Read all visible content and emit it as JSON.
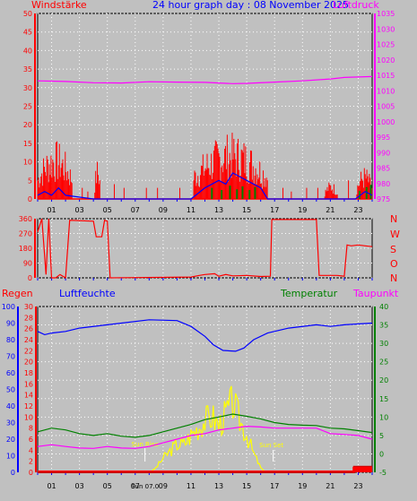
{
  "title": "24 hour graph day : 08 November 2025",
  "colors": {
    "background": "#c0c0c0",
    "plot_bg": "#c0c0c0",
    "red": "#ff0000",
    "magenta": "#ff00ff",
    "blue": "#0000ff",
    "green": "#008000",
    "dark_red": "#cc0000",
    "yellow": "#ffff00",
    "grid": "#ffffff"
  },
  "chart_data": [
    {
      "type": "line",
      "title": "24 hour graph day : 08 November 2025",
      "left_label": "Windstärke",
      "right_label": "Luftdruck",
      "x_ticks": [
        "01",
        "03",
        "05",
        "07",
        "09",
        "11",
        "13",
        "15",
        "17",
        "19",
        "21",
        "23"
      ],
      "y_left_ticks": [
        0,
        5,
        10,
        15,
        20,
        25,
        30,
        35,
        40,
        45,
        50
      ],
      "y_left_lim": [
        0,
        50
      ],
      "y_right_ticks": [
        975,
        980,
        985,
        990,
        995,
        1000,
        1005,
        1010,
        1015,
        1020,
        1025,
        1030,
        1035
      ],
      "y_right_lim": [
        975,
        1035
      ],
      "pressure": [
        [
          0,
          1013.2
        ],
        [
          2,
          1013.0
        ],
        [
          4,
          1012.6
        ],
        [
          6,
          1012.5
        ],
        [
          8,
          1012.9
        ],
        [
          10,
          1012.8
        ],
        [
          12,
          1012.7
        ],
        [
          14,
          1012.3
        ],
        [
          15,
          1012.4
        ],
        [
          17,
          1012.8
        ],
        [
          19,
          1013.2
        ],
        [
          21,
          1013.8
        ],
        [
          22,
          1014.3
        ],
        [
          24,
          1014.6
        ]
      ],
      "wind_gust_regions": [
        [
          0,
          2.5,
          16
        ],
        [
          4.1,
          4.5,
          11
        ],
        [
          11.2,
          16.5,
          18
        ],
        [
          20.6,
          21.5,
          5
        ],
        [
          22.9,
          24,
          9
        ]
      ],
      "wind_avg": [
        [
          0,
          1
        ],
        [
          0.5,
          2
        ],
        [
          1,
          1
        ],
        [
          1.5,
          3
        ],
        [
          2,
          1
        ],
        [
          4,
          0
        ],
        [
          11,
          0
        ],
        [
          12,
          3
        ],
        [
          13,
          5
        ],
        [
          13.5,
          4
        ],
        [
          14,
          7
        ],
        [
          15,
          5
        ],
        [
          16,
          3
        ],
        [
          16.5,
          0
        ],
        [
          22.8,
          0
        ],
        [
          23.5,
          2
        ],
        [
          24,
          1
        ]
      ]
    },
    {
      "type": "line",
      "right_letters": [
        "N",
        "W",
        "S",
        "O",
        "N"
      ],
      "y_ticks": [
        0,
        90,
        180,
        270,
        360
      ],
      "y_lim": [
        0,
        360
      ],
      "x_ticks": [
        "01",
        "03",
        "05",
        "07",
        "09",
        "11",
        "13",
        "15",
        "17",
        "19",
        "21",
        "23"
      ],
      "direction": [
        [
          0,
          280
        ],
        [
          0.3,
          360
        ],
        [
          0.6,
          20
        ],
        [
          0.8,
          360
        ],
        [
          1.0,
          0
        ],
        [
          1.3,
          0
        ],
        [
          1.6,
          20
        ],
        [
          2.0,
          0
        ],
        [
          2.3,
          350
        ],
        [
          4.0,
          345
        ],
        [
          4.2,
          250
        ],
        [
          4.6,
          250
        ],
        [
          4.8,
          350
        ],
        [
          5.0,
          345
        ],
        [
          5.2,
          0
        ],
        [
          11,
          5
        ],
        [
          11.6,
          15
        ],
        [
          12,
          20
        ],
        [
          12.7,
          25
        ],
        [
          13,
          10
        ],
        [
          13.5,
          20
        ],
        [
          14,
          12
        ],
        [
          15,
          15
        ],
        [
          16,
          8
        ],
        [
          16.7,
          10
        ],
        [
          16.8,
          355
        ],
        [
          20,
          355
        ],
        [
          20.2,
          15
        ],
        [
          21.5,
          15
        ],
        [
          22,
          10
        ],
        [
          22.2,
          200
        ],
        [
          22.5,
          195
        ],
        [
          23,
          200
        ],
        [
          23.5,
          195
        ],
        [
          24,
          190
        ]
      ]
    },
    {
      "type": "line",
      "labels": [
        "Regen",
        "Luftfeuchte",
        "Temperatur",
        "Taupunkt"
      ],
      "x_ticks": [
        "01",
        "03",
        "05",
        "07",
        "09",
        "11",
        "13",
        "15",
        "17",
        "19",
        "21",
        "23"
      ],
      "regen_ticks": [
        0,
        2,
        4,
        6,
        8,
        10,
        12,
        14,
        16,
        18,
        20,
        22,
        24,
        26,
        28,
        30
      ],
      "humidity_ticks": [
        0,
        10,
        20,
        30,
        40,
        50,
        60,
        70,
        80,
        90,
        100
      ],
      "temp_ticks": [
        -5,
        0,
        5,
        10,
        15,
        20,
        25,
        30,
        35,
        40
      ],
      "temp_lim": [
        -5,
        40
      ],
      "humidity": [
        [
          0,
          85
        ],
        [
          0.5,
          83
        ],
        [
          1,
          84
        ],
        [
          2,
          85
        ],
        [
          3,
          87
        ],
        [
          5,
          89
        ],
        [
          8,
          92
        ],
        [
          10,
          91.5
        ],
        [
          11,
          88
        ],
        [
          12,
          82
        ],
        [
          12.6,
          77
        ],
        [
          13.3,
          73.5
        ],
        [
          14.2,
          73
        ],
        [
          14.8,
          75
        ],
        [
          15.5,
          80
        ],
        [
          16.5,
          84
        ],
        [
          18,
          87
        ],
        [
          20,
          89
        ],
        [
          21,
          88
        ],
        [
          22,
          89
        ],
        [
          24,
          90
        ]
      ],
      "temperature": [
        [
          0,
          6
        ],
        [
          1,
          7
        ],
        [
          2,
          6.5
        ],
        [
          3,
          5.5
        ],
        [
          4,
          5
        ],
        [
          5,
          5.5
        ],
        [
          6,
          4.8
        ],
        [
          7,
          4.5
        ],
        [
          8,
          5
        ],
        [
          9,
          6
        ],
        [
          10,
          7
        ],
        [
          11,
          8
        ],
        [
          12,
          9.3
        ],
        [
          13,
          10
        ],
        [
          14,
          10.8
        ],
        [
          15,
          10.2
        ],
        [
          16,
          9.5
        ],
        [
          17,
          8.5
        ],
        [
          18,
          8
        ],
        [
          19,
          7.8
        ],
        [
          20,
          7.7
        ],
        [
          21,
          7
        ],
        [
          22,
          6.8
        ],
        [
          23,
          6.3
        ],
        [
          24,
          5.8
        ]
      ],
      "dewpoint": [
        [
          0,
          2
        ],
        [
          1,
          2.5
        ],
        [
          2,
          2
        ],
        [
          3,
          1.6
        ],
        [
          4,
          1.5
        ],
        [
          5,
          2
        ],
        [
          6,
          1.6
        ],
        [
          7,
          1.5
        ],
        [
          8,
          2
        ],
        [
          9,
          3
        ],
        [
          10,
          4
        ],
        [
          11,
          5
        ],
        [
          12,
          5.5
        ],
        [
          13,
          6.5
        ],
        [
          14,
          7
        ],
        [
          15,
          7.5
        ],
        [
          16,
          7.3
        ],
        [
          17,
          7
        ],
        [
          18,
          7
        ],
        [
          19,
          7
        ],
        [
          20,
          7
        ],
        [
          21,
          5.5
        ],
        [
          22,
          5.3
        ],
        [
          23,
          5
        ],
        [
          24,
          4
        ]
      ],
      "sun": [
        [
          0,
          0
        ],
        [
          8.1,
          0
        ],
        [
          8.5,
          1
        ],
        [
          9,
          3
        ],
        [
          9.5,
          4.5
        ],
        [
          10,
          6
        ],
        [
          10.5,
          6
        ],
        [
          11,
          8
        ],
        [
          11.5,
          9.5
        ],
        [
          12,
          11
        ],
        [
          12.5,
          12
        ],
        [
          13,
          10
        ],
        [
          13.5,
          12.5
        ],
        [
          14,
          15
        ],
        [
          14.5,
          11
        ],
        [
          15,
          8
        ],
        [
          15.5,
          4
        ],
        [
          16,
          1
        ],
        [
          16.3,
          0
        ],
        [
          24,
          0
        ]
      ],
      "rain": [
        [
          0,
          0
        ],
        [
          22.5,
          0
        ],
        [
          22.7,
          1
        ],
        [
          24,
          1
        ]
      ],
      "sun_rise_label": "Sun Rise",
      "sun_set_label": "Sun Set",
      "sun_rise_time": "Sun 07.0",
      "sun_rise_hour": 7.7,
      "sun_set_hour": 16.9
    }
  ]
}
